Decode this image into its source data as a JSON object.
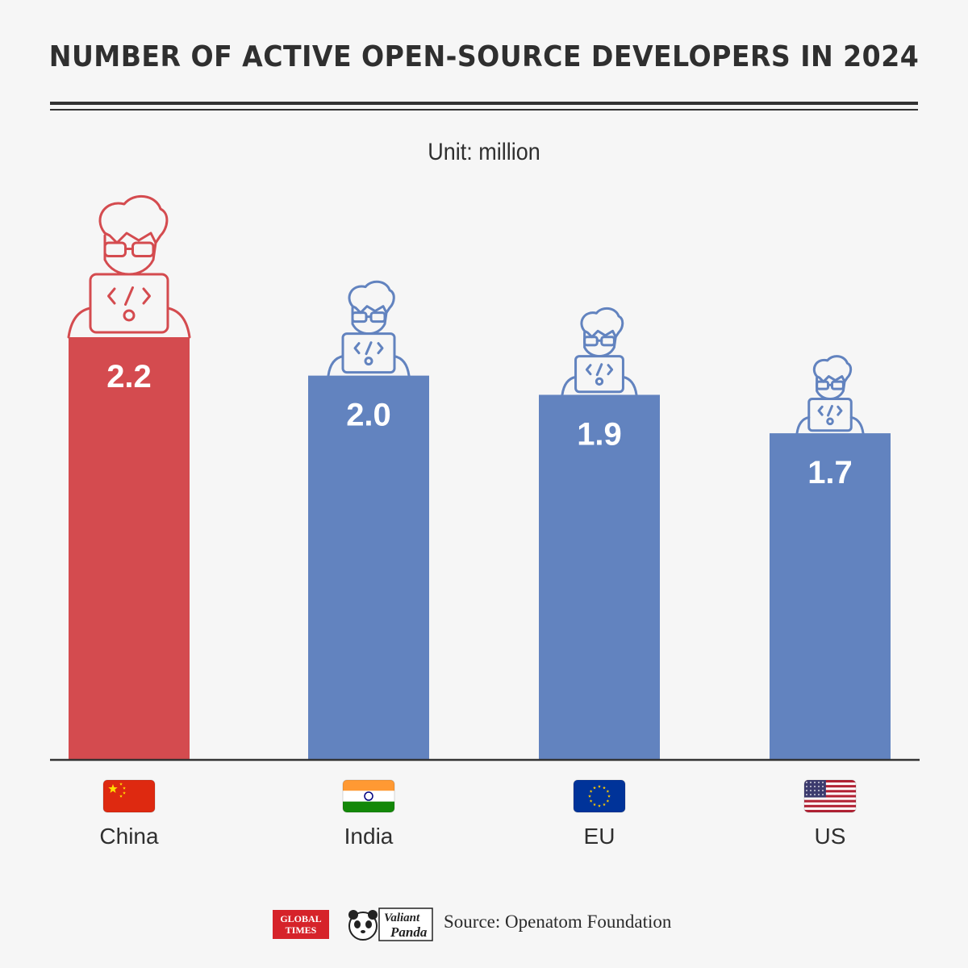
{
  "title": "NUMBER OF ACTIVE OPEN-SOURCE DEVELOPERS IN 2024",
  "unit": "Unit: million",
  "colors": {
    "highlight": "#d44b4f",
    "bars": "#6283bf",
    "axis": "#333333",
    "background": "#f6f6f6"
  },
  "chart_data": {
    "type": "bar",
    "title": "NUMBER OF ACTIVE OPEN-SOURCE DEVELOPERS IN 2024",
    "categories": [
      "China",
      "India",
      "EU",
      "US"
    ],
    "values": [
      2.2,
      2.0,
      1.9,
      1.7
    ],
    "value_labels": [
      "2.2",
      "2.0",
      "1.9",
      "1.7"
    ],
    "ylabel": "Unit: million",
    "ylim": [
      0,
      2.2
    ],
    "grid": false,
    "legend": "none",
    "highlight_category": "China",
    "icons": [
      "china-flag-icon",
      "india-flag-icon",
      "eu-flag-icon",
      "us-flag-icon"
    ]
  },
  "footer": {
    "logo1_line1": "GLOBAL",
    "logo1_line2": "TIMES",
    "logo2_line1": "Valiant",
    "logo2_line2": "Panda",
    "source": "Source: Openatom Foundation"
  }
}
